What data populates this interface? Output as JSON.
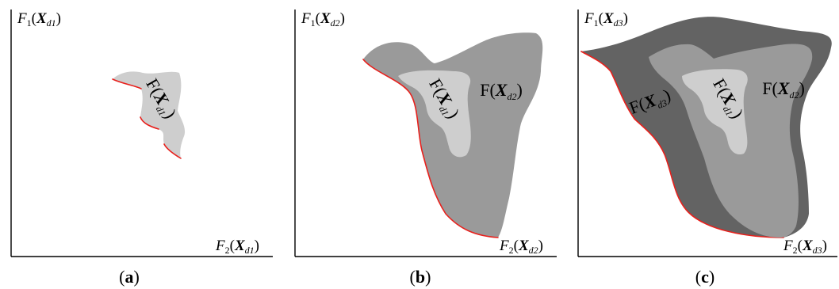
{
  "colors": {
    "light": "#cecece",
    "mid": "#9a9a9a",
    "dark": "#636363",
    "front": "#e8201c",
    "axis": "#000000"
  },
  "panels": [
    {
      "id": "a",
      "caption": "a",
      "y_axis": {
        "F": "F",
        "sub": "1",
        "X": "X",
        "d": "d1"
      },
      "x_axis": {
        "F": "F",
        "sub": "2",
        "X": "X",
        "d": "d1"
      },
      "regions": [
        {
          "name": "F(X_d1)",
          "F": "F",
          "X": "X",
          "d": "d1",
          "shade": "light"
        }
      ]
    },
    {
      "id": "b",
      "caption": "b",
      "y_axis": {
        "F": "F",
        "sub": "1",
        "X": "X",
        "d": "d2"
      },
      "x_axis": {
        "F": "F",
        "sub": "2",
        "X": "X",
        "d": "d2"
      },
      "regions": [
        {
          "name": "F(X_d2)",
          "F": "F",
          "X": "X",
          "d": "d2",
          "shade": "mid"
        },
        {
          "name": "F(X_d1)",
          "F": "F",
          "X": "X",
          "d": "d1",
          "shade": "light"
        }
      ]
    },
    {
      "id": "c",
      "caption": "c",
      "y_axis": {
        "F": "F",
        "sub": "1",
        "X": "X",
        "d": "d3"
      },
      "x_axis": {
        "F": "F",
        "sub": "2",
        "X": "X",
        "d": "d3"
      },
      "regions": [
        {
          "name": "F(X_d3)",
          "F": "F",
          "X": "X",
          "d": "d3",
          "shade": "dark"
        },
        {
          "name": "F(X_d2)",
          "F": "F",
          "X": "X",
          "d": "d2",
          "shade": "mid"
        },
        {
          "name": "F(X_d1)",
          "F": "F",
          "X": "X",
          "d": "d1",
          "shade": "light"
        }
      ]
    }
  ]
}
